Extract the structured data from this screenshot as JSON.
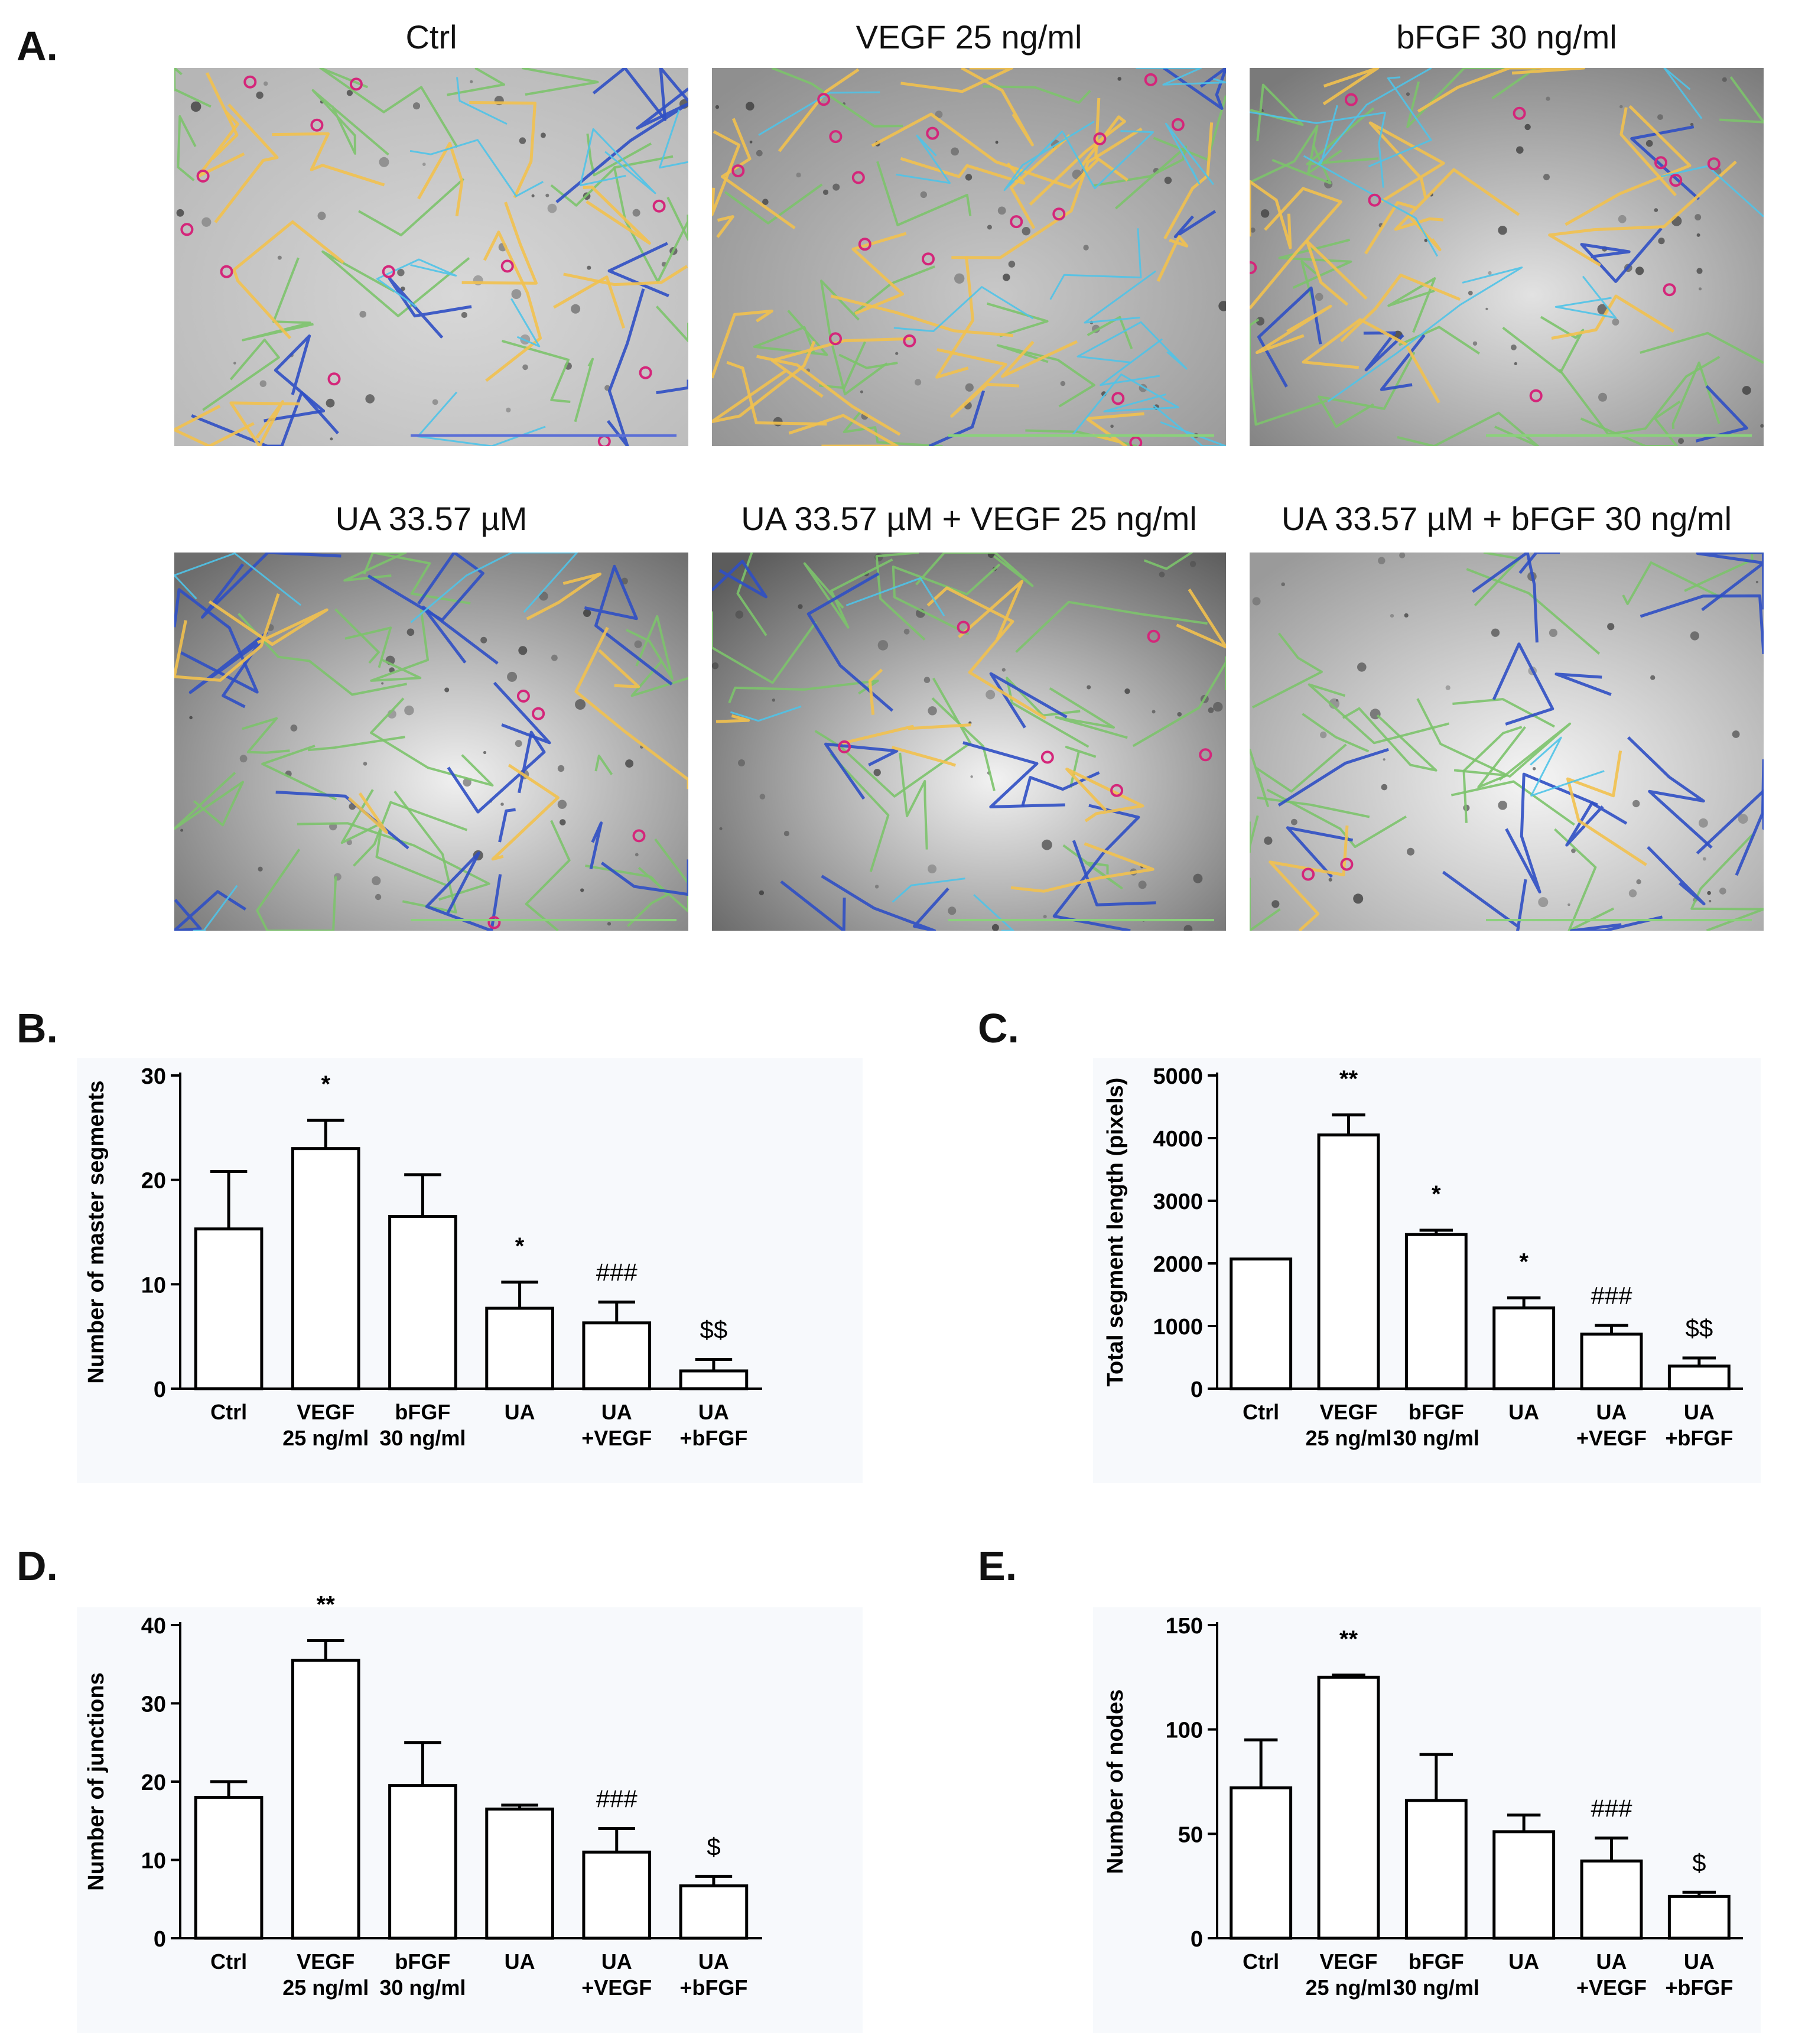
{
  "panel_labels": {
    "a": "A.",
    "b": "B.",
    "c": "C.",
    "d": "D.",
    "e": "E."
  },
  "micrographs": [
    {
      "title": "Ctrl",
      "icon": "tube-formation-micrograph"
    },
    {
      "title": "VEGF 25 ng/ml",
      "icon": "tube-formation-micrograph"
    },
    {
      "title": "bFGF 30 ng/ml",
      "icon": "tube-formation-micrograph"
    },
    {
      "title": "UA 33.57 µM",
      "icon": "tube-formation-micrograph"
    },
    {
      "title": "UA 33.57 µM + VEGF 25 ng/ml",
      "icon": "tube-formation-micrograph"
    },
    {
      "title": "UA 33.57 µM + bFGF 30 ng/ml",
      "icon": "tube-formation-micrograph"
    }
  ],
  "colors": {
    "master_segment": "#f2c14e",
    "mesh": "#4fc3e8",
    "segment": "#7cc36b",
    "branch": "#2f4fc4",
    "node": "#d4267a",
    "scale_bar_blue": "#5b6fd6",
    "scale_bar_green": "#8bd17c",
    "chart_bg": "#f7f9fc"
  },
  "chart_data": [
    {
      "type": "bar",
      "ylabel": "Number of master segments",
      "ylim": [
        0,
        30
      ],
      "yticks": [
        "0",
        "10",
        "20",
        "30"
      ],
      "yticks_values": [
        0,
        10,
        20,
        30
      ],
      "categories": [
        [
          "Ctrl"
        ],
        [
          "VEGF",
          "25 ng/ml"
        ],
        [
          "bFGF",
          "30 ng/ml"
        ],
        [
          "UA"
        ],
        [
          "UA",
          "+VEGF"
        ],
        [
          "UA",
          "+bFGF"
        ]
      ],
      "values": [
        15.3,
        23.0,
        16.5,
        7.7,
        6.3,
        1.7
      ],
      "errors": [
        5.5,
        2.7,
        4.0,
        2.5,
        2.0,
        1.1
      ],
      "annotations": [
        "",
        "*",
        "",
        "*",
        "###",
        "$$"
      ]
    },
    {
      "type": "bar",
      "ylabel": "Total segment length (pixels)",
      "ylim": [
        0,
        5000
      ],
      "yticks": [
        "0",
        "1000",
        "2000",
        "3000",
        "4000",
        "5000"
      ],
      "yticks_values": [
        0,
        1000,
        2000,
        3000,
        4000,
        5000
      ],
      "categories": [
        [
          "Ctrl"
        ],
        [
          "VEGF",
          "25 ng/ml"
        ],
        [
          "bFGF",
          "30 ng/ml"
        ],
        [
          "UA"
        ],
        [
          "UA",
          "+VEGF"
        ],
        [
          "UA",
          "+bFGF"
        ]
      ],
      "values": [
        2070,
        4050,
        2460,
        1290,
        870,
        360
      ],
      "errors": [
        0,
        320,
        70,
        160,
        140,
        130
      ],
      "annotations": [
        "",
        "**",
        "*",
        "*",
        "###",
        "$$"
      ]
    },
    {
      "type": "bar",
      "ylabel": "Number of junctions",
      "ylim": [
        0,
        40
      ],
      "yticks": [
        "0",
        "10",
        "20",
        "30",
        "40"
      ],
      "yticks_values": [
        0,
        10,
        20,
        30,
        40
      ],
      "categories": [
        [
          "Ctrl"
        ],
        [
          "VEGF",
          "25 ng/ml"
        ],
        [
          "bFGF",
          "30 ng/ml"
        ],
        [
          "UA"
        ],
        [
          "UA",
          "+VEGF"
        ],
        [
          "UA",
          "+bFGF"
        ]
      ],
      "values": [
        18.0,
        35.5,
        19.5,
        16.5,
        11.0,
        6.7
      ],
      "errors": [
        2.0,
        2.5,
        5.5,
        0.5,
        3.0,
        1.2
      ],
      "annotations": [
        "",
        "**",
        "",
        "",
        "###",
        "$"
      ]
    },
    {
      "type": "bar",
      "ylabel": "Number of nodes",
      "ylim": [
        0,
        150
      ],
      "yticks": [
        "0",
        "50",
        "100",
        "150"
      ],
      "yticks_values": [
        0,
        50,
        100,
        150
      ],
      "categories": [
        [
          "Ctrl"
        ],
        [
          "VEGF",
          "25 ng/ml"
        ],
        [
          "bFGF",
          "30 ng/ml"
        ],
        [
          "UA"
        ],
        [
          "UA",
          "+VEGF"
        ],
        [
          "UA",
          "+bFGF"
        ]
      ],
      "values": [
        72,
        125,
        66,
        51,
        37,
        20
      ],
      "errors": [
        23,
        1,
        22,
        8,
        11,
        2
      ],
      "annotations": [
        "",
        "**",
        "",
        "",
        "###",
        "$"
      ]
    }
  ]
}
